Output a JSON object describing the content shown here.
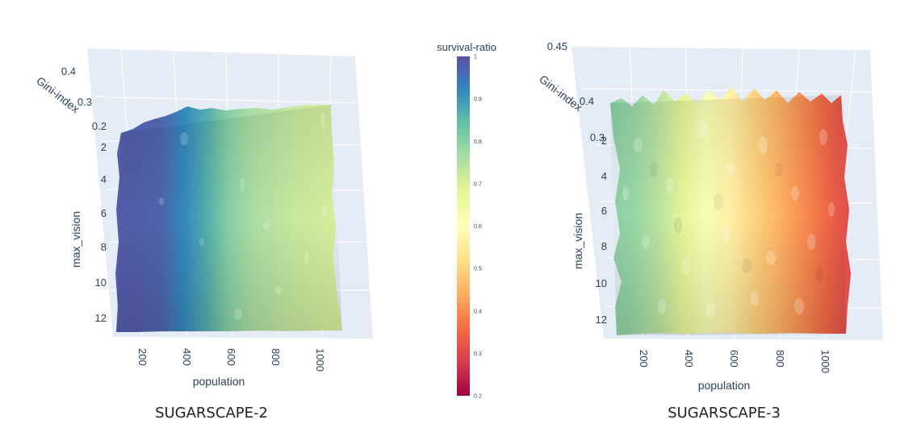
{
  "colorbar": {
    "title": "survival-ratio",
    "ticks": [
      "1",
      "0.9",
      "0.8",
      "0.7",
      "0.6",
      "0.5",
      "0.4",
      "0.3",
      "0.2"
    ],
    "range": [
      0.2,
      1
    ],
    "colorscale": "Spectral"
  },
  "chart_data": [
    {
      "type": "surface",
      "caption": "SUGARSCAPE-2",
      "xlabel": "population",
      "ylabel": "max_vision",
      "zlabel": "Gini-index",
      "x_ticks": [
        "200",
        "400",
        "600",
        "800",
        "1000"
      ],
      "y_ticks": [
        "2",
        "4",
        "6",
        "8",
        "10",
        "12"
      ],
      "z_ticks": [
        "0.4",
        "0.3",
        "0.2"
      ],
      "color_by_population": [
        {
          "population": 100,
          "survival_ratio": 0.98
        },
        {
          "population": 200,
          "survival_ratio": 0.98
        },
        {
          "population": 300,
          "survival_ratio": 0.97
        },
        {
          "population": 400,
          "survival_ratio": 0.92
        },
        {
          "population": 500,
          "survival_ratio": 0.87
        },
        {
          "population": 600,
          "survival_ratio": 0.8
        },
        {
          "population": 700,
          "survival_ratio": 0.76
        },
        {
          "population": 800,
          "survival_ratio": 0.74
        },
        {
          "population": 900,
          "survival_ratio": 0.72
        },
        {
          "population": 1000,
          "survival_ratio": 0.71
        },
        {
          "population": 1100,
          "survival_ratio": 0.7
        }
      ]
    },
    {
      "type": "surface",
      "caption": "SUGARSCAPE-3",
      "xlabel": "population",
      "ylabel": "max_vision",
      "zlabel": "Gini-index",
      "x_ticks": [
        "200",
        "400",
        "600",
        "800",
        "1000"
      ],
      "y_ticks": [
        "2",
        "4",
        "6",
        "8",
        "10",
        "12"
      ],
      "z_ticks": [
        "0.45",
        "0.4",
        "0.3"
      ],
      "color_by_population": [
        {
          "population": 100,
          "survival_ratio": 0.8
        },
        {
          "population": 200,
          "survival_ratio": 0.78
        },
        {
          "population": 300,
          "survival_ratio": 0.74
        },
        {
          "population": 400,
          "survival_ratio": 0.68
        },
        {
          "population": 500,
          "survival_ratio": 0.62
        },
        {
          "population": 600,
          "survival_ratio": 0.56
        },
        {
          "population": 700,
          "survival_ratio": 0.5
        },
        {
          "population": 800,
          "survival_ratio": 0.45
        },
        {
          "population": 900,
          "survival_ratio": 0.4
        },
        {
          "population": 1000,
          "survival_ratio": 0.35
        },
        {
          "population": 1100,
          "survival_ratio": 0.3
        }
      ]
    }
  ]
}
